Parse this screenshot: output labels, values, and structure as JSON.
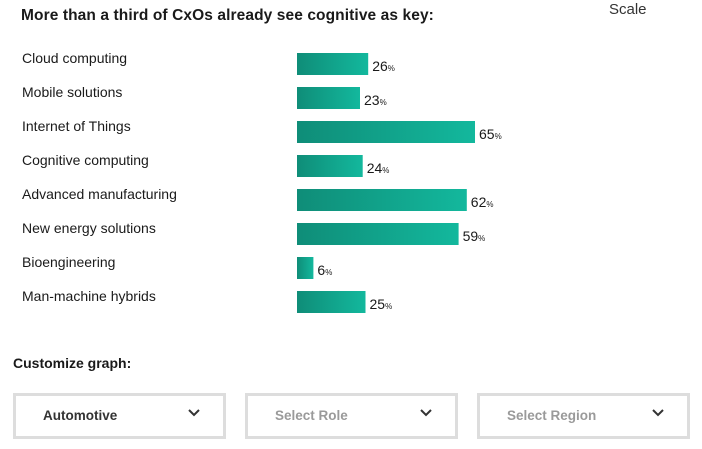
{
  "title": "More than a third of CxOs already see cognitive as key:",
  "scale_label": "Scale",
  "colors": {
    "bar_start": "#0f8d78",
    "bar_end": "#13b89d"
  },
  "chart_data": {
    "type": "bar",
    "orientation": "horizontal",
    "categories": [
      "Cloud computing",
      "Mobile solutions",
      "Internet of Things",
      "Cognitive computing",
      "Advanced manufacturing",
      "New energy solutions",
      "Bioengineering",
      "Man-machine hybrids"
    ],
    "values": [
      26,
      23,
      65,
      24,
      62,
      59,
      6,
      25
    ],
    "unit": "%",
    "xlim": [
      0,
      100
    ],
    "grid": false,
    "legend": "none"
  },
  "customize": {
    "label": "Customize graph:",
    "industry": {
      "value": "Automotive",
      "icon": "chevron-down-icon"
    },
    "role": {
      "placeholder": "Select Role",
      "icon": "chevron-down-icon"
    },
    "region": {
      "placeholder": "Select Region",
      "icon": "chevron-down-icon"
    }
  }
}
